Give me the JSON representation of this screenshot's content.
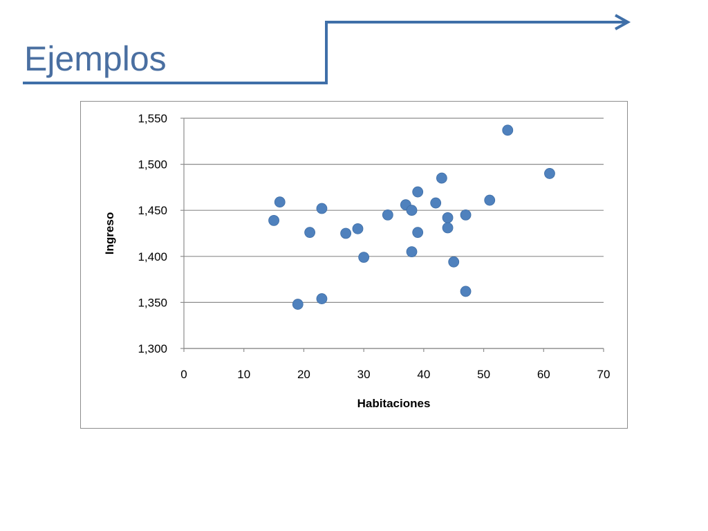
{
  "slide": {
    "title": "Ejemplos",
    "accent_color": "#3f6fa8"
  },
  "chart_data": {
    "type": "scatter",
    "xlabel": "Habitaciones",
    "ylabel": "Ingreso",
    "xlim": [
      0,
      70
    ],
    "ylim": [
      1300,
      1550
    ],
    "xticks": [
      0,
      10,
      20,
      30,
      40,
      50,
      60,
      70
    ],
    "yticks": [
      1300,
      1350,
      1400,
      1450,
      1500,
      1550
    ],
    "ytick_labels": [
      "1,300",
      "1,350",
      "1,400",
      "1,450",
      "1,500",
      "1,550"
    ],
    "grid": "horizontal",
    "marker_color": "#4f81bd",
    "points": [
      {
        "x": 15,
        "y": 1439
      },
      {
        "x": 16,
        "y": 1459
      },
      {
        "x": 19,
        "y": 1348
      },
      {
        "x": 21,
        "y": 1426
      },
      {
        "x": 23,
        "y": 1452
      },
      {
        "x": 23,
        "y": 1354
      },
      {
        "x": 27,
        "y": 1425
      },
      {
        "x": 29,
        "y": 1430
      },
      {
        "x": 30,
        "y": 1399
      },
      {
        "x": 34,
        "y": 1445
      },
      {
        "x": 37,
        "y": 1456
      },
      {
        "x": 38,
        "y": 1450
      },
      {
        "x": 38,
        "y": 1405
      },
      {
        "x": 39,
        "y": 1470
      },
      {
        "x": 39,
        "y": 1426
      },
      {
        "x": 42,
        "y": 1458
      },
      {
        "x": 43,
        "y": 1485
      },
      {
        "x": 44,
        "y": 1442
      },
      {
        "x": 44,
        "y": 1431
      },
      {
        "x": 45,
        "y": 1394
      },
      {
        "x": 47,
        "y": 1445
      },
      {
        "x": 47,
        "y": 1362
      },
      {
        "x": 51,
        "y": 1461
      },
      {
        "x": 54,
        "y": 1537
      },
      {
        "x": 61,
        "y": 1490
      }
    ]
  }
}
